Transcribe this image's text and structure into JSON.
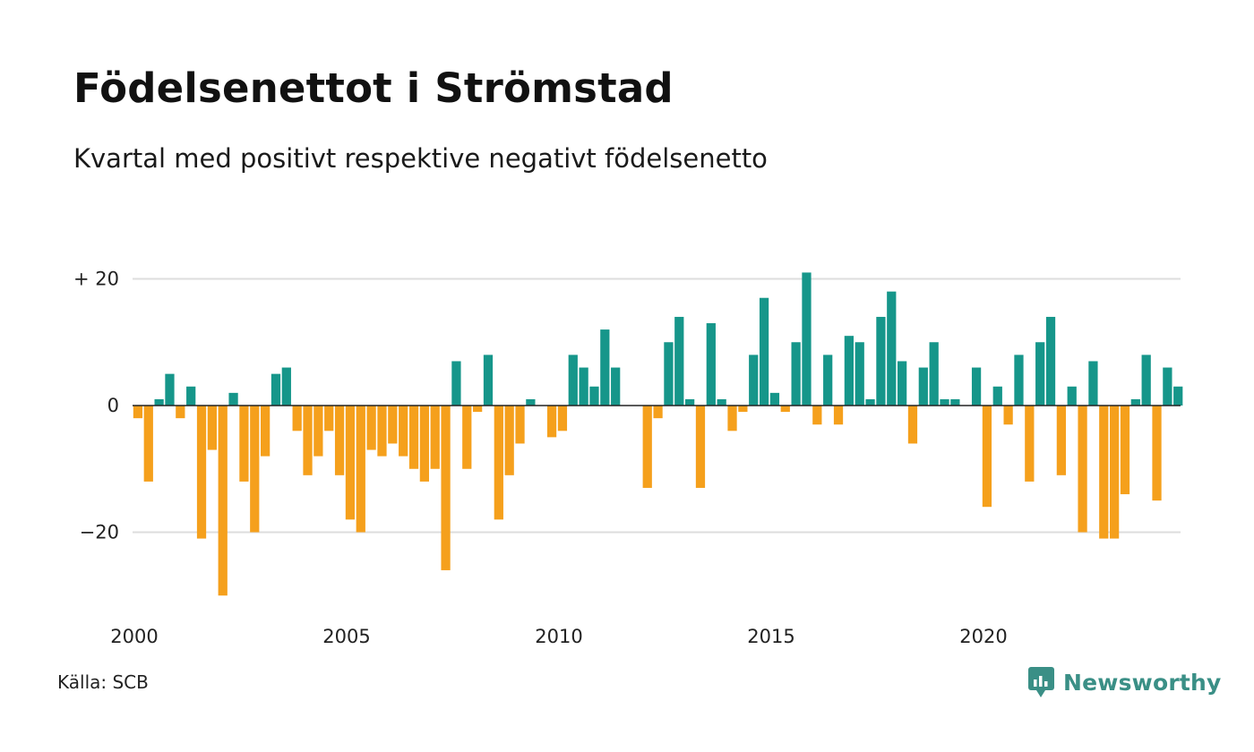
{
  "title": "Födelsenettot i Strömstad",
  "subtitle": "Kvartal med positivt respektive negativt födelsenetto",
  "source": "Källa: SCB",
  "brand": "Newsworthy",
  "colors": {
    "positive": "#16968a",
    "negative": "#f5a01c",
    "grid": "#dddddd",
    "brand": "#3a8f86"
  },
  "chart_data": {
    "type": "bar",
    "title": "Födelsenettot i Strömstad",
    "subtitle": "Kvartal med positivt respektive negativt födelsenetto",
    "x_start": 2000,
    "x_step": 0.25,
    "xlim": [
      2000,
      2024.75
    ],
    "ylim": [
      -30,
      20
    ],
    "y_ticks": [
      {
        "value": 20,
        "label": "+ 20"
      },
      {
        "value": 0,
        "label": "0"
      },
      {
        "value": -20,
        "label": "−20"
      }
    ],
    "x_ticks": [
      {
        "value": 2000,
        "label": "2000"
      },
      {
        "value": 2005,
        "label": "2005"
      },
      {
        "value": 2010,
        "label": "2010"
      },
      {
        "value": 2015,
        "label": "2015"
      },
      {
        "value": 2020,
        "label": "2020"
      }
    ],
    "grid": true,
    "values": [
      -2,
      -12,
      1,
      5,
      -2,
      3,
      -21,
      -7,
      -30,
      2,
      -12,
      -20,
      -8,
      5,
      6,
      -4,
      -11,
      -8,
      -4,
      -11,
      -18,
      -20,
      -7,
      -8,
      -6,
      -8,
      -10,
      -12,
      -10,
      -26,
      7,
      -10,
      -1,
      8,
      -18,
      -11,
      -6,
      1,
      0,
      -5,
      -4,
      8,
      6,
      3,
      12,
      6,
      0,
      0,
      -13,
      -2,
      10,
      14,
      1,
      -13,
      13,
      1,
      -4,
      -1,
      8,
      17,
      2,
      -1,
      10,
      21,
      -3,
      8,
      -3,
      11,
      10,
      1,
      14,
      18,
      7,
      -6,
      6,
      10,
      1,
      1,
      0,
      6,
      -16,
      3,
      -3,
      8,
      -12,
      10,
      14,
      -11,
      3,
      -20,
      7,
      -21,
      -21,
      -14,
      1,
      8,
      -15,
      6,
      3
    ]
  }
}
